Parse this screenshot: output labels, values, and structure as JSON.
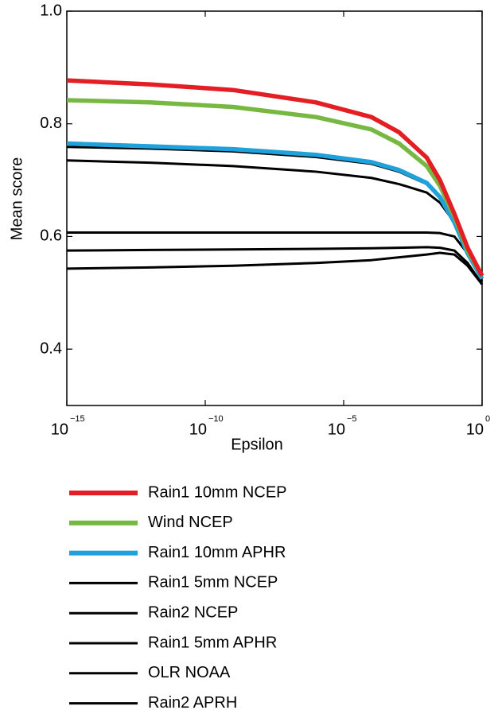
{
  "chart_data": {
    "type": "line",
    "x_label": "Epsilon",
    "y_label": "Mean score",
    "x_scale": "log",
    "xlim": [
      1e-15,
      1
    ],
    "ylim": [
      0.3,
      1.0
    ],
    "xticks": [
      {
        "value": 1e-15,
        "label": "10",
        "exponent": "−15"
      },
      {
        "value": 1e-10,
        "label": "10",
        "exponent": "−10"
      },
      {
        "value": 1e-05,
        "label": "10",
        "exponent": "−5"
      },
      {
        "value": 1,
        "label": "10",
        "exponent": "0"
      }
    ],
    "yticks": [
      0.4,
      0.6,
      0.8,
      {
        "value": 1.0,
        "label": "1.0"
      }
    ],
    "grid": false,
    "legend": "bottom",
    "x": [
      1e-15,
      1e-12,
      1e-09,
      1e-06,
      0.0001,
      0.001,
      0.01,
      0.03,
      0.1,
      0.3,
      1
    ],
    "series": [
      {
        "name": "Rain1 10mm NCEP",
        "color": "#e31e24",
        "values": [
          0.877,
          0.87,
          0.86,
          0.838,
          0.812,
          0.785,
          0.74,
          0.7,
          0.64,
          0.58,
          0.53
        ]
      },
      {
        "name": "Wind NCEP",
        "color": "#77b843",
        "values": [
          0.842,
          0.838,
          0.83,
          0.812,
          0.79,
          0.765,
          0.725,
          0.69,
          0.635,
          0.575,
          0.53
        ]
      },
      {
        "name": "Rain1 10mm APHR",
        "color": "#1fa2dc",
        "values": [
          0.765,
          0.76,
          0.755,
          0.745,
          0.732,
          0.718,
          0.695,
          0.67,
          0.625,
          0.57,
          0.525
        ]
      },
      {
        "name": "Rain1 5mm NCEP",
        "color": "#000000",
        "values": [
          0.759,
          0.756,
          0.751,
          0.741,
          0.729,
          0.715,
          0.693,
          0.67,
          0.627,
          0.572,
          0.525
        ]
      },
      {
        "name": "Rain2 NCEP",
        "color": "#000000",
        "values": [
          0.735,
          0.731,
          0.725,
          0.715,
          0.704,
          0.693,
          0.678,
          0.66,
          0.625,
          0.575,
          0.525
        ]
      },
      {
        "name": "Rain1 5mm APHR",
        "color": "#000000",
        "values": [
          0.607,
          0.607,
          0.607,
          0.607,
          0.607,
          0.607,
          0.607,
          0.606,
          0.6,
          0.57,
          0.52
        ]
      },
      {
        "name": "OLR NOAA",
        "color": "#000000",
        "values": [
          0.575,
          0.576,
          0.577,
          0.578,
          0.579,
          0.58,
          0.581,
          0.58,
          0.575,
          0.553,
          0.515
        ]
      },
      {
        "name": "Rain2 APRH",
        "color": "#000000",
        "values": [
          0.543,
          0.545,
          0.548,
          0.553,
          0.558,
          0.563,
          0.568,
          0.571,
          0.568,
          0.548,
          0.515
        ]
      }
    ]
  }
}
